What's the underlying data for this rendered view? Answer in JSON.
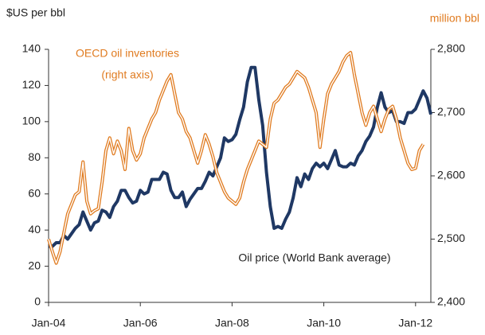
{
  "chart_data": {
    "type": "line",
    "y_label": "$US per bbl",
    "y2_label": "million bbl",
    "annotations": [
      "OECD oil inventories",
      "(right axis)",
      "Oil price (World Bank average)"
    ],
    "x": [
      0,
      1,
      2,
      3,
      4,
      5,
      6,
      7,
      8,
      9,
      10,
      11,
      12,
      13,
      14,
      15,
      16,
      17,
      18,
      19,
      20,
      21,
      22,
      23,
      24,
      25,
      26,
      27,
      28,
      29,
      30,
      31,
      32,
      33,
      34,
      35,
      36,
      37,
      38,
      39,
      40,
      41,
      42,
      43,
      44,
      45,
      46,
      47,
      48,
      49,
      50,
      51,
      52,
      53,
      54,
      55,
      56,
      57,
      58,
      59,
      60,
      61,
      62,
      63,
      64,
      65,
      66,
      67,
      68,
      69,
      70,
      71,
      72,
      73,
      74,
      75,
      76,
      77,
      78,
      79,
      80,
      81,
      82,
      83,
      84,
      85,
      86,
      87,
      88,
      89,
      90,
      91,
      92,
      93,
      94,
      95,
      96,
      97,
      98,
      99,
      100
    ],
    "xlim": [
      0,
      100
    ],
    "xticks": [
      {
        "value": 0,
        "label": "Jan-04"
      },
      {
        "value": 24,
        "label": "Jan-06"
      },
      {
        "value": 48,
        "label": "Jan-08"
      },
      {
        "value": 72,
        "label": "Jan-10"
      },
      {
        "value": 96,
        "label": "Jan-12"
      }
    ],
    "ylim": [
      0,
      140
    ],
    "yticks": [
      0,
      20,
      40,
      60,
      80,
      100,
      120,
      140
    ],
    "y2lim": [
      2400,
      2800
    ],
    "y2ticks": [
      {
        "value": 2400,
        "label": "2,400"
      },
      {
        "value": 2500,
        "label": "2,500"
      },
      {
        "value": 2600,
        "label": "2,600"
      },
      {
        "value": 2700,
        "label": "2,700"
      },
      {
        "value": 2800,
        "label": "2,800"
      }
    ],
    "series": [
      {
        "name": "Oil price (World Bank average)",
        "color": "#1f3864",
        "axis": "y",
        "values": [
          31,
          31,
          33,
          33,
          37,
          35,
          38,
          41,
          43,
          50,
          45,
          40,
          44,
          45,
          51,
          50,
          47,
          53,
          56,
          62,
          62,
          58,
          55,
          56,
          62,
          60,
          61,
          68,
          68,
          68,
          72,
          71,
          62,
          58,
          58,
          61,
          53,
          57,
          60,
          63,
          63,
          67,
          72,
          70,
          75,
          80,
          91,
          89,
          90,
          93,
          101,
          108,
          122,
          130,
          130,
          112,
          98,
          72,
          53,
          41,
          42,
          41,
          46,
          50,
          58,
          69,
          64,
          71,
          68,
          74,
          77,
          75,
          77,
          74,
          79,
          84,
          76,
          75,
          75,
          77,
          76,
          81,
          84,
          89,
          92,
          97,
          108,
          116,
          108,
          105,
          106,
          100,
          100,
          99,
          105,
          105,
          107,
          112,
          117,
          113,
          104
        ]
      },
      {
        "name": "OECD oil inventories",
        "color": "#e07b20",
        "axis": "y2",
        "values": [
          2500,
          2480,
          2462,
          2480,
          2510,
          2540,
          2555,
          2570,
          2575,
          2622,
          2560,
          2540,
          2545,
          2548,
          2590,
          2640,
          2660,
          2635,
          2655,
          2640,
          2610,
          2675,
          2640,
          2625,
          2635,
          2660,
          2675,
          2690,
          2700,
          2720,
          2735,
          2750,
          2760,
          2730,
          2700,
          2690,
          2670,
          2660,
          2640,
          2620,
          2640,
          2665,
          2650,
          2630,
          2605,
          2590,
          2575,
          2565,
          2560,
          2555,
          2565,
          2590,
          2610,
          2625,
          2640,
          2655,
          2650,
          2645,
          2690,
          2715,
          2720,
          2730,
          2740,
          2745,
          2755,
          2765,
          2760,
          2755,
          2740,
          2720,
          2700,
          2645,
          2690,
          2730,
          2745,
          2755,
          2765,
          2780,
          2790,
          2795,
          2760,
          2730,
          2700,
          2680,
          2700,
          2710,
          2690,
          2670,
          2690,
          2705,
          2710,
          2690,
          2660,
          2640,
          2620,
          2610,
          2612,
          2640,
          2650,
          null,
          null
        ]
      }
    ]
  }
}
